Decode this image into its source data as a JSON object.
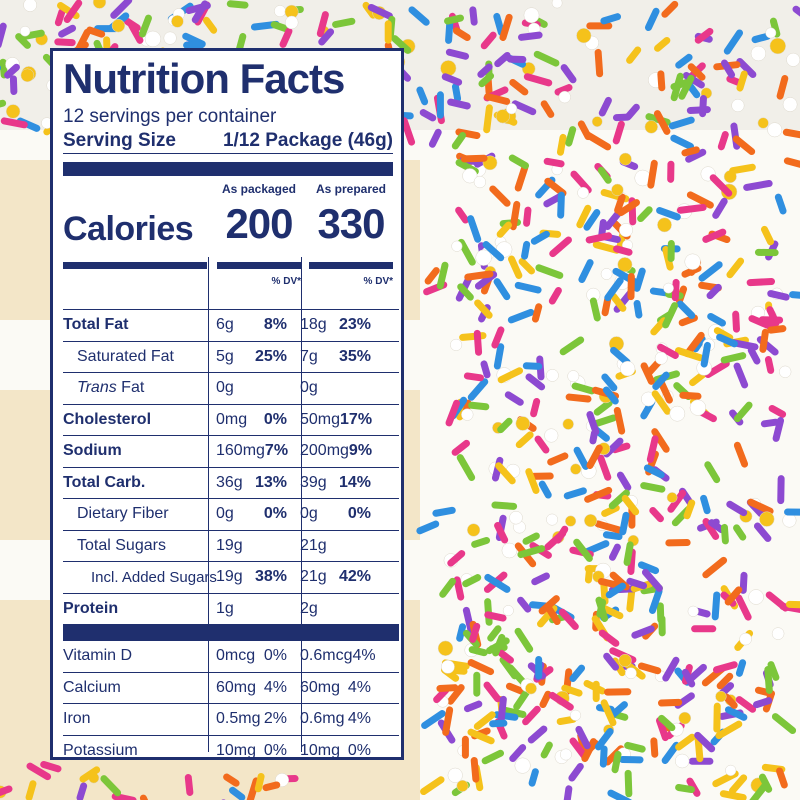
{
  "label": {
    "title": "Nutrition Facts",
    "servings_per_container": "12 servings per container",
    "serving_size_label": "Serving Size",
    "serving_size_value": "1/12 Package (46g)",
    "calories_label": "Calories",
    "columns": [
      {
        "header": "As packaged",
        "calories": "200",
        "dv_header": "% DV*"
      },
      {
        "header": "As prepared",
        "calories": "330",
        "dv_header": "% DV*"
      }
    ],
    "nutrients": [
      {
        "name": "Total Fat",
        "bold": true,
        "indent": 0,
        "packaged": {
          "amount": "6g",
          "dv": "8%"
        },
        "prepared": {
          "amount": "18g",
          "dv": "23%"
        }
      },
      {
        "name": "Saturated Fat",
        "bold": false,
        "indent": 1,
        "packaged": {
          "amount": "5g",
          "dv": "25%"
        },
        "prepared": {
          "amount": "7g",
          "dv": "35%"
        }
      },
      {
        "name_italic": "Trans",
        "name_rest": " Fat",
        "bold": false,
        "indent": 1,
        "packaged": {
          "amount": "0g",
          "dv": ""
        },
        "prepared": {
          "amount": "0g",
          "dv": ""
        }
      },
      {
        "name": "Cholesterol",
        "bold": true,
        "indent": 0,
        "packaged": {
          "amount": "0mg",
          "dv": "0%"
        },
        "prepared": {
          "amount": "50mg",
          "dv": "17%"
        }
      },
      {
        "name": "Sodium",
        "bold": true,
        "indent": 0,
        "packaged": {
          "amount": "160mg",
          "dv": "7%"
        },
        "prepared": {
          "amount": "200mg",
          "dv": "9%"
        }
      },
      {
        "name": "Total Carb.",
        "bold": true,
        "indent": 0,
        "packaged": {
          "amount": "36g",
          "dv": "13%"
        },
        "prepared": {
          "amount": "39g",
          "dv": "14%"
        }
      },
      {
        "name": "Dietary Fiber",
        "bold": false,
        "indent": 1,
        "packaged": {
          "amount": "0g",
          "dv": "0%"
        },
        "prepared": {
          "amount": "0g",
          "dv": "0%"
        }
      },
      {
        "name": "Total Sugars",
        "bold": false,
        "indent": 1,
        "packaged": {
          "amount": "19g",
          "dv": ""
        },
        "prepared": {
          "amount": "21g",
          "dv": ""
        }
      },
      {
        "name": "Incl. Added Sugars",
        "bold": false,
        "indent": 2,
        "packaged": {
          "amount": "19g",
          "dv": "38%"
        },
        "prepared": {
          "amount": "21g",
          "dv": "42%"
        }
      },
      {
        "name": "Protein",
        "bold": true,
        "indent": 0,
        "packaged": {
          "amount": "1g",
          "dv": ""
        },
        "prepared": {
          "amount": "2g",
          "dv": ""
        }
      }
    ],
    "vitamins": [
      {
        "name": "Vitamin D",
        "packaged": {
          "amount": "0mcg",
          "dv": "0%"
        },
        "prepared": {
          "amount": "0.6mcg",
          "dv": "4%"
        }
      },
      {
        "name": "Calcium",
        "packaged": {
          "amount": "60mg",
          "dv": "4%"
        },
        "prepared": {
          "amount": "60mg",
          "dv": "4%"
        }
      },
      {
        "name": "Iron",
        "packaged": {
          "amount": "0.5mg",
          "dv": "2%"
        },
        "prepared": {
          "amount": "0.6mg",
          "dv": "4%"
        }
      },
      {
        "name": "Potassium",
        "packaged": {
          "amount": "10mg",
          "dv": "0%"
        },
        "prepared": {
          "amount": "10mg",
          "dv": "0%"
        }
      }
    ]
  },
  "colors": {
    "label_ink": "#1f2f6e",
    "cake": "#f3e6c8",
    "frosting": "#fbfaf5"
  }
}
